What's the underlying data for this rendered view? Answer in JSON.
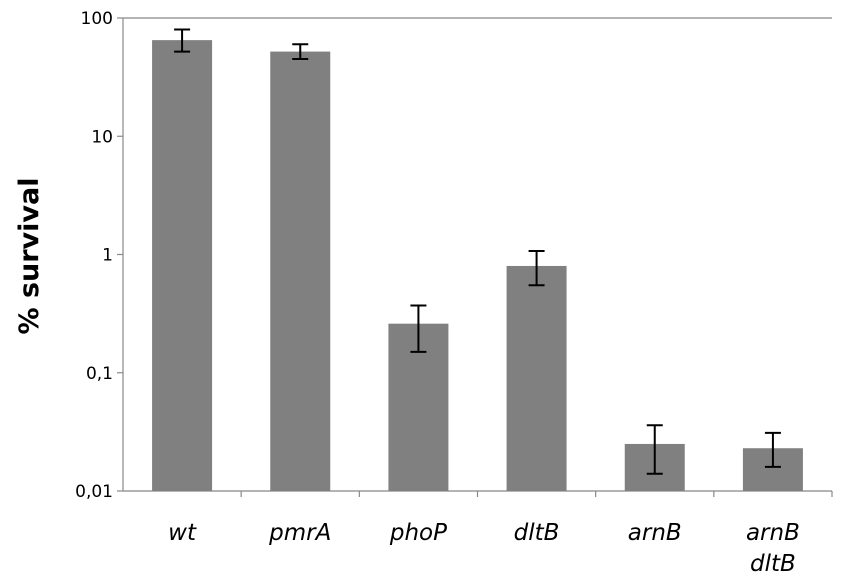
{
  "chart_data": {
    "type": "bar",
    "scale": "log",
    "ylabel": "% survival",
    "ylim": [
      0.01,
      100
    ],
    "yticks": [
      "0,01",
      "0,1",
      "1",
      "10",
      "100"
    ],
    "categories": [
      {
        "lines": [
          "wt"
        ]
      },
      {
        "lines": [
          "pmrA"
        ]
      },
      {
        "lines": [
          "phoP"
        ]
      },
      {
        "lines": [
          "dltB"
        ]
      },
      {
        "lines": [
          "arnB"
        ]
      },
      {
        "lines": [
          "arnB",
          "dltB"
        ]
      }
    ],
    "values": [
      65,
      52,
      0.26,
      0.8,
      0.025,
      0.023
    ],
    "error_low": [
      52,
      45,
      0.15,
      0.55,
      0.014,
      0.016
    ],
    "error_high": [
      80,
      60,
      0.37,
      1.07,
      0.036,
      0.031
    ],
    "bar_color": "#808080",
    "grid": false,
    "legend": "none"
  }
}
